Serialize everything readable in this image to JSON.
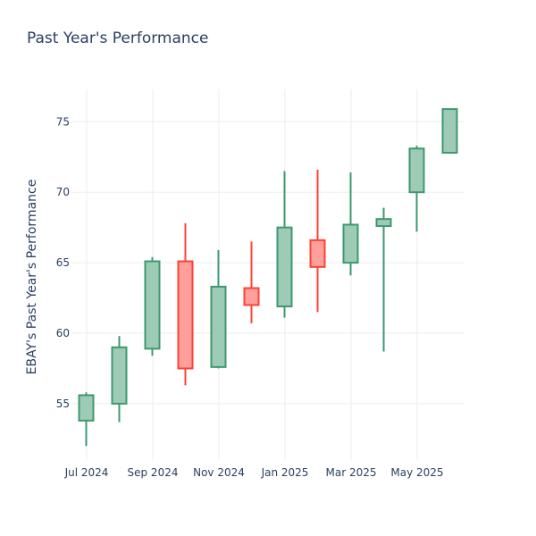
{
  "chart_data": {
    "type": "candlestick",
    "title": "Past Year's Performance",
    "xlabel": "",
    "ylabel": "EBAY's Past Year's Performance",
    "ylim": [
      51,
      77.3
    ],
    "y_ticks": [
      55,
      60,
      65,
      70,
      75
    ],
    "x_ticks": [
      "Jul 2024",
      "Sep 2024",
      "Nov 2024",
      "Jan 2025",
      "Mar 2025",
      "May 2025"
    ],
    "grid": true,
    "legend": "none",
    "colors": {
      "increasing": "#3d9970",
      "increasing_fill": "#9ecbb5",
      "decreasing": "#ff4136",
      "decreasing_fill": "#ffa09b"
    },
    "candles": [
      {
        "x": "Jun 2024",
        "open": 53.8,
        "high": 55.8,
        "low": 52.0,
        "close": 55.6
      },
      {
        "x": "Jul 2024",
        "open": 55.0,
        "high": 59.8,
        "low": 53.7,
        "close": 59.0
      },
      {
        "x": "Aug 2024",
        "open": 58.9,
        "high": 65.4,
        "low": 58.4,
        "close": 65.1
      },
      {
        "x": "Sep 2024",
        "open": 65.1,
        "high": 67.8,
        "low": 56.3,
        "close": 57.5
      },
      {
        "x": "Oct 2024",
        "open": 57.6,
        "high": 65.9,
        "low": 57.5,
        "close": 63.3
      },
      {
        "x": "Nov 2024",
        "open": 63.2,
        "high": 66.5,
        "low": 60.7,
        "close": 62.0
      },
      {
        "x": "Dec 2024",
        "open": 61.9,
        "high": 71.5,
        "low": 61.1,
        "close": 67.5
      },
      {
        "x": "Jan 2025",
        "open": 66.6,
        "high": 71.6,
        "low": 61.5,
        "close": 64.7
      },
      {
        "x": "Feb 2025",
        "open": 65.0,
        "high": 71.4,
        "low": 64.1,
        "close": 67.7
      },
      {
        "x": "Mar 2025",
        "open": 67.6,
        "high": 68.9,
        "low": 58.7,
        "close": 68.1
      },
      {
        "x": "Apr 2025",
        "open": 70.0,
        "high": 73.3,
        "low": 67.2,
        "close": 73.1
      },
      {
        "x": "May 2025",
        "open": 72.8,
        "high": 75.9,
        "low": 72.8,
        "close": 75.9
      }
    ]
  }
}
